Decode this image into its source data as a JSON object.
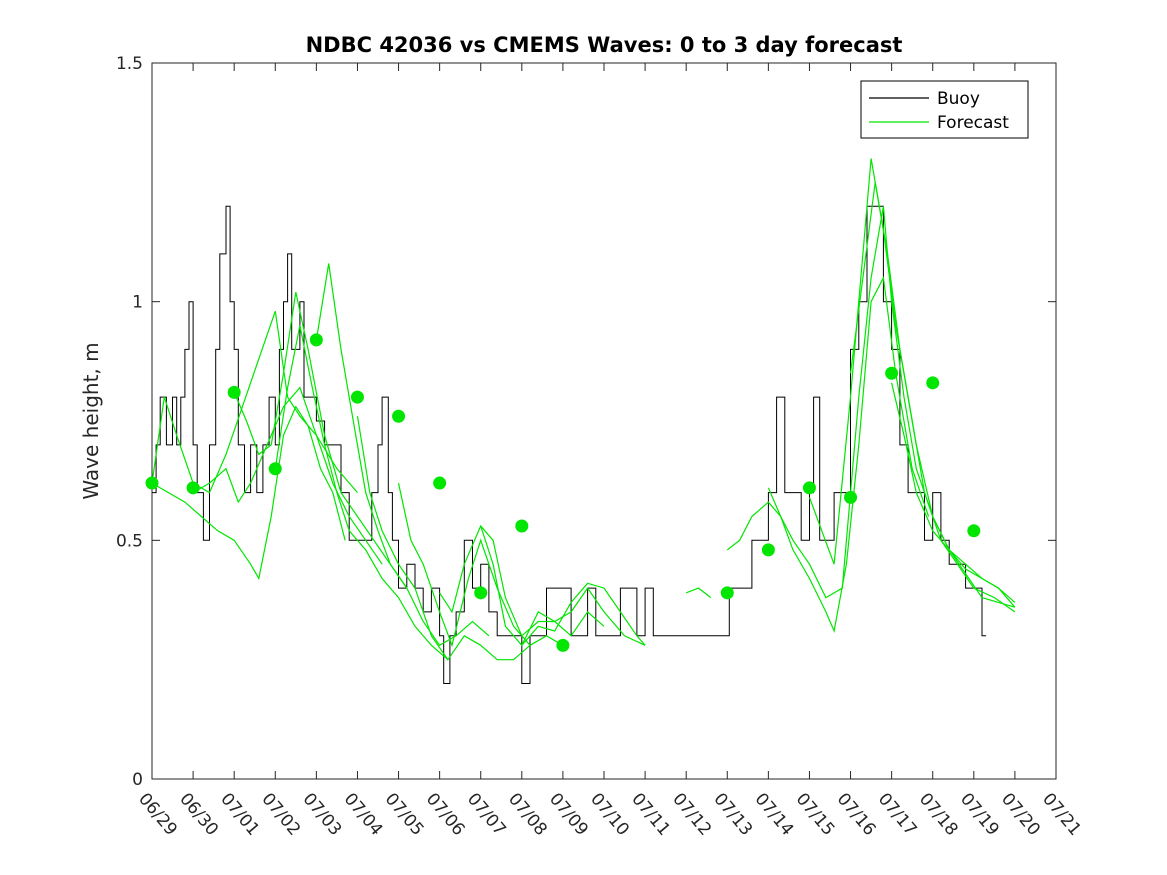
{
  "chart_data": {
    "type": "line",
    "title": "NDBC 42036 vs CMEMS Waves: 0 to 3 day forecast",
    "xlabel": "",
    "ylabel": "Wave height, m",
    "x_tick_labels": [
      "06/29",
      "06/30",
      "07/01",
      "07/02",
      "07/03",
      "07/04",
      "07/05",
      "07/06",
      "07/07",
      "07/08",
      "07/09",
      "07/10",
      "07/11",
      "07/12",
      "07/13",
      "07/14",
      "07/15",
      "07/16",
      "07/17",
      "07/18",
      "07/19",
      "07/20",
      "07/21"
    ],
    "y_ticks": [
      "0",
      "0.5",
      "1",
      "1.5"
    ],
    "xlim": [
      "2021-06-29",
      "2021-07-21"
    ],
    "ylim": [
      0,
      1.5
    ],
    "grid": false,
    "legend_position": "top-right",
    "colors": {
      "buoy": "#000000",
      "forecast": "#00e600"
    },
    "legend": [
      {
        "label": "Buoy",
        "color": "#000000"
      },
      {
        "label": "Forecast",
        "color": "#00e600"
      }
    ],
    "buoy": [
      [
        0,
        0.6
      ],
      [
        0.1,
        0.7
      ],
      [
        0.2,
        0.8
      ],
      [
        0.35,
        0.7
      ],
      [
        0.5,
        0.8
      ],
      [
        0.6,
        0.7
      ],
      [
        0.7,
        0.8
      ],
      [
        0.8,
        0.9
      ],
      [
        0.9,
        1.0
      ],
      [
        1.0,
        0.7
      ],
      [
        1.1,
        0.6
      ],
      [
        1.25,
        0.5
      ],
      [
        1.4,
        0.7
      ],
      [
        1.55,
        0.9
      ],
      [
        1.65,
        1.1
      ],
      [
        1.8,
        1.2
      ],
      [
        1.9,
        1.0
      ],
      [
        2.0,
        0.9
      ],
      [
        2.1,
        0.7
      ],
      [
        2.25,
        0.6
      ],
      [
        2.4,
        0.7
      ],
      [
        2.55,
        0.6
      ],
      [
        2.7,
        0.7
      ],
      [
        2.85,
        0.8
      ],
      [
        3.0,
        0.7
      ],
      [
        3.1,
        0.9
      ],
      [
        3.2,
        1.0
      ],
      [
        3.3,
        1.1
      ],
      [
        3.4,
        0.9
      ],
      [
        3.5,
        0.9
      ],
      [
        3.6,
        1.0
      ],
      [
        3.7,
        0.8
      ],
      [
        3.9,
        0.8
      ],
      [
        4.0,
        0.75
      ],
      [
        4.2,
        0.7
      ],
      [
        4.4,
        0.7
      ],
      [
        4.6,
        0.6
      ],
      [
        4.8,
        0.5
      ],
      [
        5.0,
        0.5
      ],
      [
        5.2,
        0.5
      ],
      [
        5.35,
        0.6
      ],
      [
        5.5,
        0.7
      ],
      [
        5.6,
        0.8
      ],
      [
        5.75,
        0.6
      ],
      [
        5.85,
        0.5
      ],
      [
        6.0,
        0.4
      ],
      [
        6.2,
        0.45
      ],
      [
        6.4,
        0.4
      ],
      [
        6.6,
        0.35
      ],
      [
        6.8,
        0.4
      ],
      [
        7.0,
        0.3
      ],
      [
        7.1,
        0.2
      ],
      [
        7.25,
        0.3
      ],
      [
        7.4,
        0.35
      ],
      [
        7.6,
        0.5
      ],
      [
        7.8,
        0.4
      ],
      [
        8.0,
        0.45
      ],
      [
        8.2,
        0.35
      ],
      [
        8.4,
        0.3
      ],
      [
        8.6,
        0.3
      ],
      [
        8.8,
        0.3
      ],
      [
        9.0,
        0.2
      ],
      [
        9.2,
        0.3
      ],
      [
        9.4,
        0.3
      ],
      [
        9.6,
        0.4
      ],
      [
        9.8,
        0.4
      ],
      [
        10.0,
        0.4
      ],
      [
        10.2,
        0.3
      ],
      [
        10.4,
        0.3
      ],
      [
        10.6,
        0.4
      ],
      [
        10.8,
        0.3
      ],
      [
        11.0,
        0.3
      ],
      [
        11.2,
        0.3
      ],
      [
        11.4,
        0.4
      ],
      [
        11.6,
        0.4
      ],
      [
        11.8,
        0.3
      ],
      [
        12.0,
        0.4
      ],
      [
        12.2,
        0.3
      ],
      [
        12.5,
        0.3
      ],
      [
        13.0,
        0.3
      ],
      [
        13.5,
        0.3
      ],
      [
        13.95,
        0.3
      ],
      [
        14.05,
        0.4
      ],
      [
        14.3,
        0.4
      ],
      [
        14.6,
        0.5
      ],
      [
        14.8,
        0.5
      ],
      [
        15.0,
        0.6
      ],
      [
        15.2,
        0.8
      ],
      [
        15.4,
        0.6
      ],
      [
        15.6,
        0.6
      ],
      [
        15.8,
        0.5
      ],
      [
        16.0,
        0.6
      ],
      [
        16.1,
        0.8
      ],
      [
        16.25,
        0.5
      ],
      [
        16.4,
        0.5
      ],
      [
        16.6,
        0.6
      ],
      [
        16.8,
        0.6
      ],
      [
        17.0,
        0.9
      ],
      [
        17.2,
        1.0
      ],
      [
        17.4,
        1.2
      ],
      [
        17.6,
        1.2
      ],
      [
        17.8,
        1.0
      ],
      [
        18.0,
        0.9
      ],
      [
        18.2,
        0.7
      ],
      [
        18.4,
        0.6
      ],
      [
        18.6,
        0.6
      ],
      [
        18.8,
        0.5
      ],
      [
        19.0,
        0.6
      ],
      [
        19.2,
        0.5
      ],
      [
        19.4,
        0.45
      ],
      [
        19.6,
        0.45
      ],
      [
        19.8,
        0.4
      ],
      [
        20.0,
        0.4
      ],
      [
        20.2,
        0.3
      ],
      [
        20.3,
        0.3
      ]
    ],
    "forecast_runs": [
      [
        [
          0,
          0.62
        ],
        [
          0.4,
          0.6
        ],
        [
          0.8,
          0.58
        ],
        [
          1.2,
          0.55
        ],
        [
          1.6,
          0.52
        ],
        [
          2.0,
          0.5
        ],
        [
          2.4,
          0.45
        ],
        [
          2.6,
          0.42
        ],
        [
          2.9,
          0.55
        ],
        [
          3.2,
          0.72
        ],
        [
          3.5,
          0.78
        ],
        [
          3.8,
          0.74
        ],
        [
          4.1,
          0.65
        ],
        [
          4.4,
          0.6
        ],
        [
          4.7,
          0.5
        ]
      ],
      [
        [
          0,
          0.62
        ],
        [
          0.3,
          0.8
        ],
        [
          0.6,
          0.72
        ],
        [
          1.0,
          0.62
        ],
        [
          1.4,
          0.6
        ],
        [
          1.8,
          0.68
        ],
        [
          2.2,
          0.78
        ],
        [
          2.6,
          0.88
        ],
        [
          3.0,
          0.98
        ],
        [
          3.3,
          0.8
        ],
        [
          3.6,
          0.76
        ],
        [
          4.0,
          0.72
        ],
        [
          4.5,
          0.65
        ],
        [
          5.0,
          0.6
        ]
      ],
      [
        [
          1.0,
          0.6
        ],
        [
          1.4,
          0.62
        ],
        [
          1.8,
          0.65
        ],
        [
          2.1,
          0.58
        ],
        [
          2.4,
          0.62
        ],
        [
          2.8,
          0.7
        ],
        [
          3.2,
          0.78
        ],
        [
          3.6,
          0.82
        ],
        [
          4.0,
          0.72
        ],
        [
          4.4,
          0.62
        ],
        [
          4.8,
          0.55
        ],
        [
          5.2,
          0.5
        ],
        [
          5.6,
          0.45
        ]
      ],
      [
        [
          2.0,
          0.81
        ],
        [
          2.3,
          0.75
        ],
        [
          2.6,
          0.68
        ],
        [
          2.9,
          0.7
        ],
        [
          3.2,
          0.85
        ],
        [
          3.5,
          1.02
        ],
        [
          3.8,
          0.9
        ],
        [
          4.2,
          0.72
        ],
        [
          4.6,
          0.6
        ],
        [
          5.0,
          0.55
        ],
        [
          5.4,
          0.5
        ],
        [
          5.8,
          0.45
        ],
        [
          6.2,
          0.4
        ]
      ],
      [
        [
          3.0,
          0.65
        ],
        [
          3.3,
          0.82
        ],
        [
          3.6,
          0.95
        ],
        [
          3.9,
          0.82
        ],
        [
          4.2,
          0.7
        ],
        [
          4.5,
          0.6
        ],
        [
          4.8,
          0.52
        ],
        [
          5.2,
          0.48
        ],
        [
          5.6,
          0.42
        ],
        [
          6.0,
          0.38
        ],
        [
          6.4,
          0.32
        ],
        [
          6.8,
          0.28
        ],
        [
          7.2,
          0.25
        ]
      ],
      [
        [
          4.0,
          0.92
        ],
        [
          4.3,
          1.08
        ],
        [
          4.6,
          0.9
        ],
        [
          4.9,
          0.75
        ],
        [
          5.2,
          0.6
        ],
        [
          5.5,
          0.52
        ],
        [
          5.8,
          0.45
        ],
        [
          6.2,
          0.4
        ],
        [
          6.6,
          0.33
        ],
        [
          7.0,
          0.28
        ],
        [
          7.4,
          0.3
        ],
        [
          7.8,
          0.33
        ],
        [
          8.2,
          0.3
        ]
      ],
      [
        [
          5.0,
          0.76
        ],
        [
          5.3,
          0.6
        ],
        [
          5.6,
          0.52
        ],
        [
          6.0,
          0.45
        ],
        [
          6.4,
          0.4
        ],
        [
          6.8,
          0.3
        ],
        [
          7.2,
          0.25
        ],
        [
          7.6,
          0.3
        ],
        [
          8.0,
          0.28
        ],
        [
          8.4,
          0.25
        ],
        [
          8.8,
          0.25
        ],
        [
          9.2,
          0.28
        ]
      ],
      [
        [
          6.0,
          0.62
        ],
        [
          6.3,
          0.5
        ],
        [
          6.6,
          0.45
        ],
        [
          7.0,
          0.35
        ],
        [
          7.3,
          0.28
        ],
        [
          7.7,
          0.42
        ],
        [
          8.0,
          0.5
        ],
        [
          8.4,
          0.4
        ],
        [
          8.8,
          0.32
        ],
        [
          9.2,
          0.28
        ],
        [
          9.6,
          0.3
        ],
        [
          10.0,
          0.28
        ]
      ],
      [
        [
          7.0,
          0.39
        ],
        [
          7.3,
          0.35
        ],
        [
          7.6,
          0.45
        ],
        [
          8.0,
          0.53
        ],
        [
          8.3,
          0.5
        ],
        [
          8.6,
          0.38
        ],
        [
          9.0,
          0.3
        ],
        [
          9.4,
          0.33
        ],
        [
          9.8,
          0.33
        ],
        [
          10.2,
          0.3
        ],
        [
          10.6,
          0.35
        ],
        [
          11.0,
          0.32
        ]
      ],
      [
        [
          8.0,
          0.53
        ],
        [
          8.3,
          0.45
        ],
        [
          8.6,
          0.32
        ],
        [
          9.0,
          0.28
        ],
        [
          9.4,
          0.35
        ],
        [
          9.8,
          0.33
        ],
        [
          10.2,
          0.35
        ],
        [
          10.6,
          0.4
        ],
        [
          11.0,
          0.35
        ],
        [
          11.5,
          0.3
        ],
        [
          12.0,
          0.28
        ]
      ],
      [
        [
          9.0,
          0.28
        ],
        [
          9.4,
          0.32
        ],
        [
          9.8,
          0.31
        ],
        [
          10.2,
          0.37
        ],
        [
          10.6,
          0.41
        ],
        [
          11.0,
          0.4
        ],
        [
          11.4,
          0.35
        ],
        [
          11.8,
          0.3
        ],
        [
          12.0,
          0.28
        ]
      ],
      [
        [
          13.0,
          0.39
        ],
        [
          13.3,
          0.4
        ],
        [
          13.6,
          0.38
        ]
      ],
      [
        [
          14.0,
          0.48
        ],
        [
          14.3,
          0.5
        ],
        [
          14.6,
          0.55
        ],
        [
          15.0,
          0.58
        ],
        [
          15.3,
          0.55
        ],
        [
          15.6,
          0.48
        ],
        [
          16.0,
          0.42
        ],
        [
          16.4,
          0.35
        ],
        [
          16.6,
          0.31
        ],
        [
          16.9,
          0.45
        ],
        [
          17.2,
          0.7
        ],
        [
          17.5,
          1.0
        ],
        [
          17.8,
          1.05
        ],
        [
          18.1,
          0.85
        ],
        [
          18.5,
          0.65
        ],
        [
          18.9,
          0.55
        ]
      ],
      [
        [
          15.0,
          0.61
        ],
        [
          15.3,
          0.55
        ],
        [
          15.6,
          0.5
        ],
        [
          16.0,
          0.45
        ],
        [
          16.4,
          0.38
        ],
        [
          16.8,
          0.4
        ],
        [
          17.2,
          0.8
        ],
        [
          17.5,
          1.05
        ],
        [
          17.8,
          1.2
        ],
        [
          18.0,
          1.0
        ],
        [
          18.3,
          0.8
        ],
        [
          18.6,
          0.65
        ],
        [
          19.0,
          0.55
        ],
        [
          19.4,
          0.48
        ],
        [
          19.8,
          0.43
        ],
        [
          20.2,
          0.38
        ],
        [
          20.6,
          0.37
        ],
        [
          21.0,
          0.36
        ]
      ],
      [
        [
          16.0,
          0.59
        ],
        [
          16.3,
          0.52
        ],
        [
          16.6,
          0.45
        ],
        [
          17.0,
          0.8
        ],
        [
          17.3,
          1.1
        ],
        [
          17.5,
          1.3
        ],
        [
          17.8,
          1.15
        ],
        [
          18.1,
          0.95
        ],
        [
          18.4,
          0.8
        ],
        [
          18.8,
          0.6
        ],
        [
          19.2,
          0.5
        ],
        [
          19.6,
          0.45
        ],
        [
          20.0,
          0.4
        ],
        [
          20.5,
          0.38
        ],
        [
          21.0,
          0.35
        ]
      ],
      [
        [
          17.0,
          0.85
        ],
        [
          17.3,
          1.05
        ],
        [
          17.6,
          1.25
        ],
        [
          17.9,
          1.1
        ],
        [
          18.2,
          0.9
        ],
        [
          18.6,
          0.7
        ],
        [
          19.0,
          0.55
        ],
        [
          19.4,
          0.48
        ],
        [
          19.8,
          0.45
        ],
        [
          20.2,
          0.42
        ],
        [
          20.6,
          0.4
        ],
        [
          21.0,
          0.36
        ]
      ],
      [
        [
          18.0,
          0.83
        ],
        [
          18.3,
          0.72
        ],
        [
          18.6,
          0.6
        ],
        [
          19.0,
          0.52
        ],
        [
          19.4,
          0.48
        ],
        [
          19.8,
          0.44
        ],
        [
          20.2,
          0.42
        ],
        [
          20.6,
          0.4
        ],
        [
          21.0,
          0.37
        ]
      ]
    ],
    "forecast_init_points": [
      [
        0,
        0.62
      ],
      [
        1,
        0.61
      ],
      [
        2,
        0.81
      ],
      [
        3,
        0.65
      ],
      [
        4,
        0.92
      ],
      [
        5,
        0.8
      ],
      [
        6,
        0.76
      ],
      [
        7,
        0.62
      ],
      [
        8,
        0.39
      ],
      [
        9,
        0.53
      ],
      [
        10,
        0.28
      ],
      [
        14,
        0.39
      ],
      [
        15,
        0.48
      ],
      [
        16,
        0.61
      ],
      [
        17,
        0.59
      ],
      [
        18,
        0.85
      ],
      [
        19,
        0.83
      ],
      [
        20,
        0.52
      ]
    ]
  }
}
